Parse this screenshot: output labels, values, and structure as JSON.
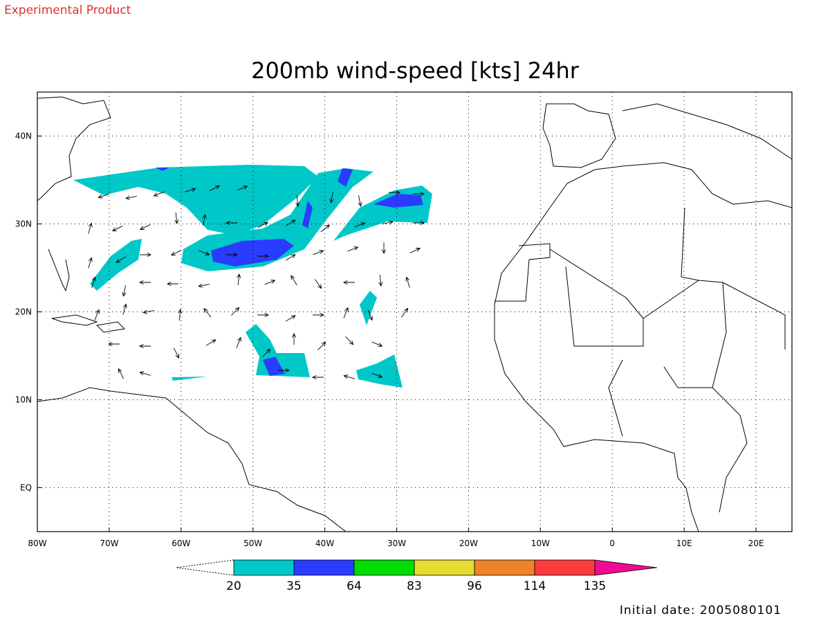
{
  "header": {
    "product": "Experimental Product",
    "title": "200mb wind-speed [kts] 24hr"
  },
  "map": {
    "lon_range": [
      -80,
      25
    ],
    "lat_range": [
      -5,
      45
    ],
    "lon_ticks": [
      {
        "value": -80,
        "label": "80W"
      },
      {
        "value": -70,
        "label": "70W"
      },
      {
        "value": -60,
        "label": "60W"
      },
      {
        "value": -50,
        "label": "50W"
      },
      {
        "value": -40,
        "label": "40W"
      },
      {
        "value": -30,
        "label": "30W"
      },
      {
        "value": -20,
        "label": "20W"
      },
      {
        "value": -10,
        "label": "10W"
      },
      0,
      {
        "value": 10,
        "label": "10E"
      },
      {
        "value": 20,
        "label": "20E"
      }
    ],
    "lat_ticks": [
      {
        "value": 40,
        "label": "40N"
      },
      {
        "value": 30,
        "label": "30N"
      },
      {
        "value": 20,
        "label": "20N"
      },
      {
        "value": 10,
        "label": "10N"
      },
      {
        "value": 0,
        "label": "EQ"
      }
    ]
  },
  "colorbar": {
    "levels": [
      20,
      35,
      64,
      83,
      96,
      114,
      135
    ],
    "colors": [
      "#00c8c8",
      "#2a3cff",
      "#00dc00",
      "#e6dc32",
      "#f08228",
      "#fa3c3c",
      "#f00a96"
    ]
  },
  "footer": {
    "initial_date": "Initial date: 2005080101"
  }
}
